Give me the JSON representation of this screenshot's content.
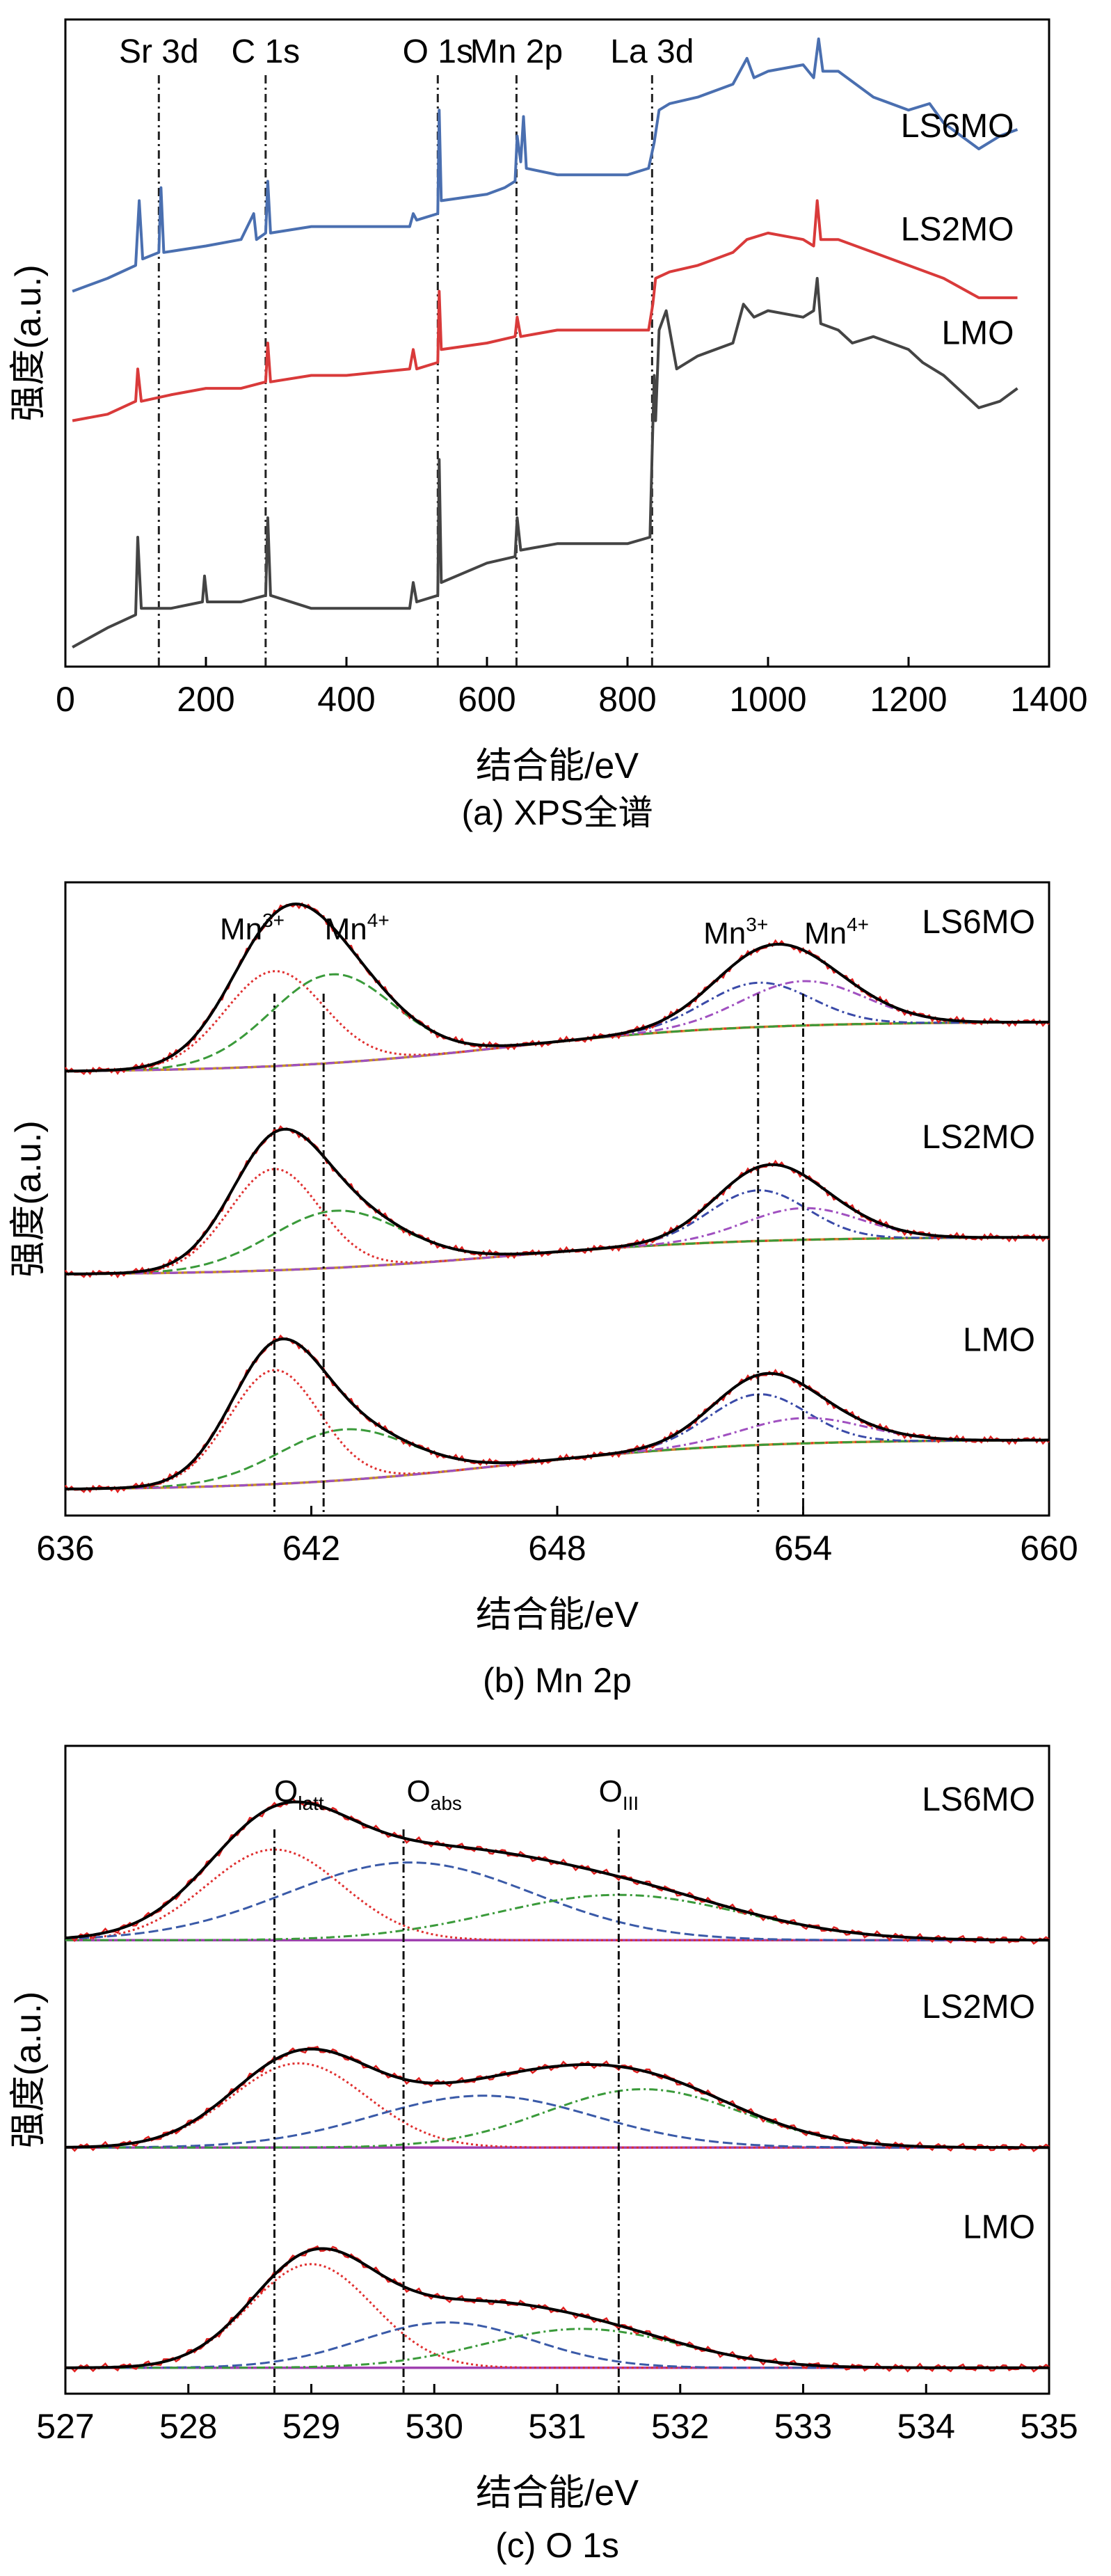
{
  "chart_data": [
    {
      "type": "line",
      "subtitle": "(a) XPS全谱",
      "xlabel": "结合能/eV",
      "ylabel": "强度(a.u.)",
      "xlim": [
        0,
        1400
      ],
      "ylim": [
        0,
        100
      ],
      "xticks": [
        0,
        200,
        400,
        600,
        800,
        1000,
        1200,
        1400
      ],
      "reference_lines": [
        {
          "label": "Sr 3d",
          "x": 133
        },
        {
          "label": "C 1s",
          "x": 285
        },
        {
          "label": "O 1s",
          "x": 530
        },
        {
          "label": "Mn 2p",
          "x": 642
        },
        {
          "label": "La 3d",
          "x": 835
        }
      ],
      "series": [
        {
          "name": "LS6MO",
          "color": "#4a6fb0",
          "points": [
            [
              10,
              58
            ],
            [
              60,
              60
            ],
            [
              100,
              62
            ],
            [
              105,
              72
            ],
            [
              110,
              63
            ],
            [
              133,
              64
            ],
            [
              136,
              74
            ],
            [
              140,
              64
            ],
            [
              200,
              65
            ],
            [
              250,
              66
            ],
            [
              268,
              70
            ],
            [
              272,
              66
            ],
            [
              285,
              67
            ],
            [
              288,
              75
            ],
            [
              292,
              67
            ],
            [
              350,
              68
            ],
            [
              400,
              68
            ],
            [
              490,
              68
            ],
            [
              495,
              70
            ],
            [
              500,
              69
            ],
            [
              530,
              70
            ],
            [
              532,
              86
            ],
            [
              535,
              72
            ],
            [
              600,
              73
            ],
            [
              625,
              74
            ],
            [
              640,
              75
            ],
            [
              643,
              82
            ],
            [
              648,
              78
            ],
            [
              652,
              85
            ],
            [
              656,
              77
            ],
            [
              700,
              76
            ],
            [
              800,
              76
            ],
            [
              830,
              77
            ],
            [
              838,
              81
            ],
            [
              845,
              86
            ],
            [
              860,
              87
            ],
            [
              900,
              88
            ],
            [
              950,
              90
            ],
            [
              970,
              94
            ],
            [
              980,
              91
            ],
            [
              1000,
              92
            ],
            [
              1050,
              93
            ],
            [
              1065,
              91
            ],
            [
              1072,
              97
            ],
            [
              1078,
              92
            ],
            [
              1100,
              92
            ],
            [
              1150,
              88
            ],
            [
              1200,
              86
            ],
            [
              1230,
              87
            ],
            [
              1250,
              84
            ],
            [
              1300,
              80
            ],
            [
              1330,
              82
            ],
            [
              1355,
              83
            ]
          ]
        },
        {
          "name": "LS2MO",
          "color": "#d93a3a",
          "points": [
            [
              10,
              38
            ],
            [
              60,
              39
            ],
            [
              100,
              41
            ],
            [
              103,
              46
            ],
            [
              108,
              41
            ],
            [
              150,
              42
            ],
            [
              200,
              43
            ],
            [
              250,
              43
            ],
            [
              285,
              44
            ],
            [
              288,
              50
            ],
            [
              292,
              44
            ],
            [
              350,
              45
            ],
            [
              400,
              45
            ],
            [
              490,
              46
            ],
            [
              495,
              49
            ],
            [
              500,
              46
            ],
            [
              530,
              47
            ],
            [
              532,
              58
            ],
            [
              535,
              49
            ],
            [
              600,
              50
            ],
            [
              640,
              51
            ],
            [
              643,
              54
            ],
            [
              648,
              51
            ],
            [
              700,
              52
            ],
            [
              800,
              52
            ],
            [
              830,
              52
            ],
            [
              836,
              56
            ],
            [
              840,
              60
            ],
            [
              860,
              61
            ],
            [
              900,
              62
            ],
            [
              950,
              64
            ],
            [
              970,
              66
            ],
            [
              1000,
              67
            ],
            [
              1050,
              66
            ],
            [
              1065,
              65
            ],
            [
              1070,
              72
            ],
            [
              1075,
              66
            ],
            [
              1100,
              66
            ],
            [
              1150,
              64
            ],
            [
              1200,
              62
            ],
            [
              1250,
              60
            ],
            [
              1300,
              57
            ],
            [
              1330,
              57
            ],
            [
              1355,
              57
            ]
          ]
        },
        {
          "name": "LMO",
          "color": "#444444",
          "points": [
            [
              10,
              3
            ],
            [
              60,
              6
            ],
            [
              100,
              8
            ],
            [
              103,
              20
            ],
            [
              108,
              9
            ],
            [
              150,
              9
            ],
            [
              195,
              10
            ],
            [
              198,
              14
            ],
            [
              202,
              10
            ],
            [
              250,
              10
            ],
            [
              285,
              11
            ],
            [
              288,
              23
            ],
            [
              292,
              11
            ],
            [
              350,
              9
            ],
            [
              400,
              9
            ],
            [
              490,
              9
            ],
            [
              495,
              13
            ],
            [
              500,
              10
            ],
            [
              530,
              11
            ],
            [
              532,
              32
            ],
            [
              535,
              13
            ],
            [
              600,
              16
            ],
            [
              640,
              17
            ],
            [
              643,
              23
            ],
            [
              648,
              18
            ],
            [
              700,
              19
            ],
            [
              800,
              19
            ],
            [
              832,
              20
            ],
            [
              835,
              33
            ],
            [
              838,
              45
            ],
            [
              840,
              38
            ],
            [
              845,
              52
            ],
            [
              855,
              55
            ],
            [
              870,
              46
            ],
            [
              900,
              48
            ],
            [
              950,
              50
            ],
            [
              965,
              56
            ],
            [
              980,
              54
            ],
            [
              1000,
              55
            ],
            [
              1050,
              54
            ],
            [
              1065,
              55
            ],
            [
              1070,
              60
            ],
            [
              1075,
              53
            ],
            [
              1100,
              52
            ],
            [
              1120,
              50
            ],
            [
              1150,
              51
            ],
            [
              1200,
              49
            ],
            [
              1220,
              47
            ],
            [
              1250,
              45
            ],
            [
              1300,
              40
            ],
            [
              1330,
              41
            ],
            [
              1355,
              43
            ]
          ]
        }
      ]
    },
    {
      "type": "line",
      "subtitle": "(b) Mn 2p",
      "xlabel": "结合能/eV",
      "ylabel": "强度(a.u.)",
      "xlim": [
        636,
        660
      ],
      "ylim": [
        0,
        100
      ],
      "xticks": [
        636,
        642,
        648,
        654,
        660
      ],
      "peak_positions": [
        {
          "label": "Mn³⁺",
          "x": 641.1
        },
        {
          "label": "Mn⁴⁺",
          "x": 642.3
        },
        {
          "label": "Mn³⁺",
          "x": 652.9
        },
        {
          "label": "Mn⁴⁺",
          "x": 654.0
        }
      ],
      "peak_labels": [
        {
          "base": "Mn",
          "sup": "3+",
          "x": 641.1
        },
        {
          "base": "Mn",
          "sup": "4+",
          "x": 642.3
        },
        {
          "base": "Mn",
          "sup": "3+",
          "x": 652.9
        },
        {
          "base": "Mn",
          "sup": "4+",
          "x": 654.0
        }
      ],
      "samples": [
        {
          "name": "LS6MO",
          "offset": 70,
          "bg": [
            0,
            8
          ],
          "comps": [
            {
              "c": 641.1,
              "h": 15,
              "w": 1.2,
              "color": "#e03030",
              "dash": "3,4"
            },
            {
              "c": 642.5,
              "h": 14,
              "w": 1.5,
              "color": "#3a9a3a",
              "dash": "14,6"
            },
            {
              "c": 652.9,
              "h": 7,
              "w": 1.3,
              "color": "#3a4aa8",
              "dash": "12,5,3,5"
            },
            {
              "c": 654.0,
              "h": 7,
              "w": 1.5,
              "color": "#a050c0",
              "dash": "12,5,3,5"
            }
          ]
        },
        {
          "name": "LS2MO",
          "offset": 38,
          "bg": [
            0,
            6
          ],
          "comps": [
            {
              "c": 641.1,
              "h": 16,
              "w": 1.1,
              "color": "#e03030",
              "dash": "3,4"
            },
            {
              "c": 642.6,
              "h": 9,
              "w": 1.6,
              "color": "#3a9a3a",
              "dash": "14,6"
            },
            {
              "c": 652.9,
              "h": 8,
              "w": 1.2,
              "color": "#3a4aa8",
              "dash": "12,5,3,5"
            },
            {
              "c": 654.0,
              "h": 5,
              "w": 1.4,
              "color": "#a050c0",
              "dash": "12,5,3,5"
            }
          ]
        },
        {
          "name": "LMO",
          "offset": 4,
          "bg": [
            0,
            8
          ],
          "comps": [
            {
              "c": 641.1,
              "h": 18,
              "w": 1.1,
              "color": "#e03030",
              "dash": "3,4"
            },
            {
              "c": 642.8,
              "h": 8,
              "w": 1.6,
              "color": "#3a9a3a",
              "dash": "14,6"
            },
            {
              "c": 652.9,
              "h": 8,
              "w": 1.2,
              "color": "#3a4aa8",
              "dash": "12,5,3,5"
            },
            {
              "c": 654.0,
              "h": 4,
              "w": 1.5,
              "color": "#a050c0",
              "dash": "12,5,3,5"
            }
          ]
        }
      ]
    },
    {
      "type": "line",
      "subtitle": "(c) O 1s",
      "xlabel": "结合能/eV",
      "ylabel": "强度(a.u.)",
      "xlim": [
        527,
        535
      ],
      "ylim": [
        0,
        100
      ],
      "xticks": [
        527,
        528,
        529,
        530,
        531,
        532,
        533,
        534,
        535
      ],
      "peak_positions": [
        {
          "label": "Olatt",
          "x": 528.7
        },
        {
          "label": "Oabs",
          "x": 529.75
        },
        {
          "label": "OIII",
          "x": 531.5
        }
      ],
      "peak_labels": [
        {
          "base": "O",
          "sub": "latt",
          "x": 528.9
        },
        {
          "base": "O",
          "sub": "abs",
          "x": 530.0
        },
        {
          "base": "O",
          "sub": "III",
          "x": 531.5
        }
      ],
      "samples": [
        {
          "name": "LS6MO",
          "offset": 70,
          "bg": [
            0,
            0
          ],
          "comps": [
            {
              "c": 528.7,
              "h": 14,
              "w": 0.55,
              "color": "#e03030",
              "dash": "3,4"
            },
            {
              "c": 529.8,
              "h": 12,
              "w": 1.0,
              "color": "#3a5aa8",
              "dash": "14,6"
            },
            {
              "c": 531.5,
              "h": 7,
              "w": 1.0,
              "color": "#3a9a3a",
              "dash": "12,5,3,5"
            }
          ]
        },
        {
          "name": "LS2MO",
          "offset": 38,
          "bg": [
            0,
            0
          ],
          "comps": [
            {
              "c": 528.9,
              "h": 13,
              "w": 0.55,
              "color": "#e03030",
              "dash": "3,4"
            },
            {
              "c": 530.4,
              "h": 8,
              "w": 0.9,
              "color": "#3a5aa8",
              "dash": "14,6"
            },
            {
              "c": 531.7,
              "h": 9,
              "w": 0.8,
              "color": "#3a9a3a",
              "dash": "12,5,3,5"
            }
          ]
        },
        {
          "name": "LMO",
          "offset": 4,
          "bg": [
            0,
            0
          ],
          "comps": [
            {
              "c": 529.0,
              "h": 16,
              "w": 0.5,
              "color": "#e03030",
              "dash": "3,4"
            },
            {
              "c": 530.1,
              "h": 7,
              "w": 0.7,
              "color": "#3a5aa8",
              "dash": "14,6"
            },
            {
              "c": 531.2,
              "h": 6,
              "w": 0.8,
              "color": "#3a9a3a",
              "dash": "12,5,3,5"
            }
          ]
        }
      ]
    }
  ]
}
